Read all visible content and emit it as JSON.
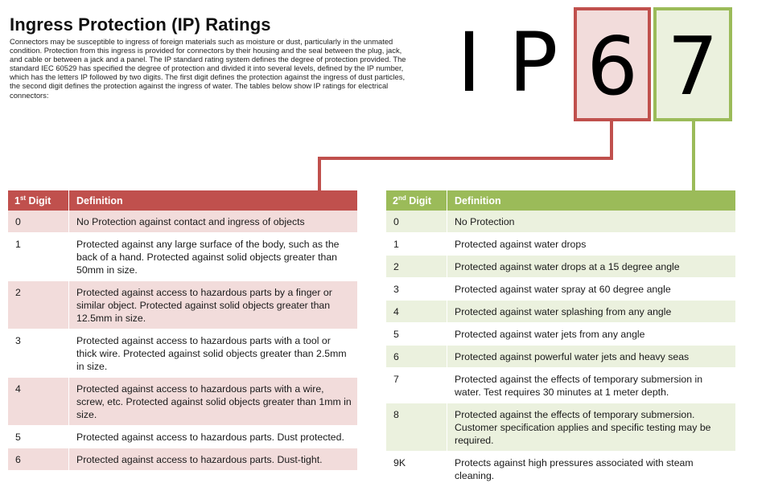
{
  "title": "Ingress Protection (IP) Ratings",
  "intro": "Connectors may be susceptible to ingress of foreign materials such as moisture or dust, particularly in the unmated condition.  Protection from this ingress is provided for connectors by their housing and the seal between the plug, jack, and cable or between a jack and a panel. The IP standard rating system defines the degree of protection provided. The standard IEC 60529 has specified the degree of protection and divided it into several levels, defined by the IP number, which has the letters IP followed by two digits.  The first digit defines the protection against the ingress of dust particles, the second digit defines the protection against the ingress of water. The tables below show IP ratings for electrical connectors:",
  "graphic": {
    "letter_i": "I",
    "letter_p": "P",
    "digit1": "6",
    "digit2": "7",
    "colors": {
      "red": "#c0504d",
      "red_light": "#f2dcdb",
      "green": "#9bbb59",
      "green_light": "#ebf1de"
    }
  },
  "table1": {
    "header_digit_num": "1",
    "header_digit_sup": "st",
    "header_digit_word": " Digit",
    "header_definition": "Definition",
    "rows": [
      {
        "digit": "0",
        "definition": "No Protection against contact and ingress of objects"
      },
      {
        "digit": "1",
        "definition": "Protected against any large surface of the body, such as the back of a hand.  Protected against solid objects greater than 50mm in size."
      },
      {
        "digit": "2",
        "definition": "Protected against access to hazardous parts by a finger or similar object.  Protected against solid objects greater than 12.5mm in size."
      },
      {
        "digit": "3",
        "definition": "Protected against access to hazardous parts with a tool or thick wire.  Protected against solid objects greater than 2.5mm in size."
      },
      {
        "digit": "4",
        "definition": "Protected against access to hazardous parts with a wire, screw, etc.  Protected against solid objects greater than 1mm in size."
      },
      {
        "digit": "5",
        "definition": "Protected against access to hazardous parts.  Dust protected."
      },
      {
        "digit": "6",
        "definition": "Protected against access to hazardous parts.  Dust-tight."
      }
    ]
  },
  "table2": {
    "header_digit_num": "2",
    "header_digit_sup": "nd",
    "header_digit_word": " Digit",
    "header_definition": "Definition",
    "rows": [
      {
        "digit": "0",
        "definition": "No Protection"
      },
      {
        "digit": "1",
        "definition": "Protected against water drops"
      },
      {
        "digit": "2",
        "definition": "Protected against water drops at a 15 degree angle"
      },
      {
        "digit": "3",
        "definition": "Protected against water spray at 60 degree angle"
      },
      {
        "digit": "4",
        "definition": "Protected against water splashing from any angle"
      },
      {
        "digit": "5",
        "definition": "Protected against water jets from any angle"
      },
      {
        "digit": "6",
        "definition": "Protected against powerful water jets and heavy seas"
      },
      {
        "digit": "7",
        "definition": "Protected against the effects of temporary submersion in water.  Test requires 30 minutes at 1 meter depth."
      },
      {
        "digit": "8",
        "definition": "Protected against the effects of temporary submersion. Customer specification applies and specific testing may be required."
      },
      {
        "digit": "9K",
        "definition": "Protects against high pressures associated with steam cleaning."
      }
    ]
  }
}
